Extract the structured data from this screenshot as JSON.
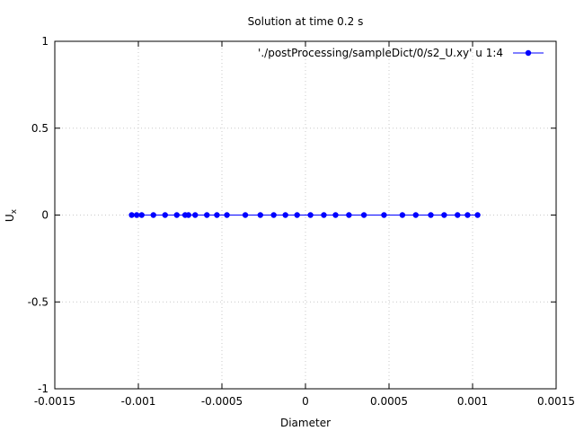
{
  "chart_data": {
    "type": "line",
    "title": "Solution at time 0.2 s",
    "xlabel": "Diameter",
    "ylabel": {
      "base": "U",
      "subscript": "x"
    },
    "xlim": [
      -0.0015,
      0.0015
    ],
    "ylim": [
      -1,
      1
    ],
    "xticks": [
      "-0.0015",
      "-0.001",
      "-0.0005",
      "0",
      "0.0005",
      "0.001",
      "0.0015"
    ],
    "xtick_values": [
      -0.0015,
      -0.001,
      -0.0005,
      0,
      0.0005,
      0.001,
      0.0015
    ],
    "yticks": [
      "-1",
      "-0.5",
      "0",
      "0.5",
      "1"
    ],
    "ytick_values": [
      -1,
      -0.5,
      0,
      0.5,
      1
    ],
    "grid": true,
    "legend_position": "top-right",
    "colors": {
      "series": "#0000ff",
      "grid": "#c8c8c8"
    },
    "series": [
      {
        "name": "'./postProcessing/sampleDict/0/s2_U.xy' u 1:4",
        "x": [
          -0.00104,
          -0.00101,
          -0.00098,
          -0.00091,
          -0.00084,
          -0.00077,
          -0.00072,
          -0.0007,
          -0.00066,
          -0.00059,
          -0.00053,
          -0.00047,
          -0.00036,
          -0.00027,
          -0.00019,
          -0.00012,
          -5e-05,
          3e-05,
          0.00011,
          0.00018,
          0.00026,
          0.00035,
          0.00047,
          0.00058,
          0.00066,
          0.00075,
          0.00083,
          0.00091,
          0.00097,
          0.00103
        ],
        "y": [
          0,
          0,
          0,
          0,
          0,
          0,
          0,
          0,
          0,
          0,
          0,
          0,
          0,
          0,
          0,
          0,
          0,
          0,
          0,
          0,
          0,
          0,
          0,
          0,
          0,
          0,
          0,
          0,
          0,
          0
        ]
      }
    ]
  }
}
